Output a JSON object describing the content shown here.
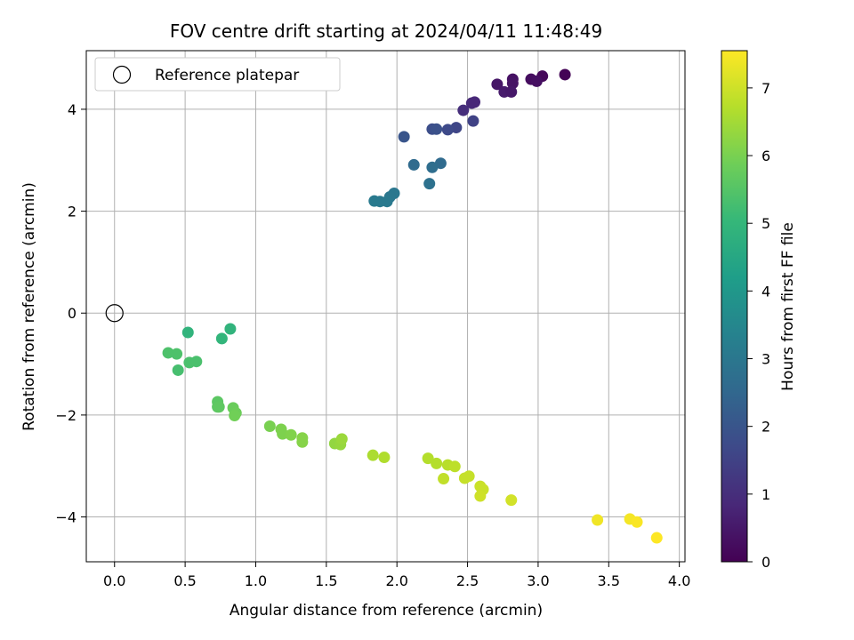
{
  "chart_data": {
    "type": "scatter",
    "title": "FOV centre drift starting at 2024/04/11 11:48:49",
    "xlabel": "Angular distance from reference (arcmin)",
    "ylabel": "Rotation from reference (arcmin)",
    "xlim": [
      -0.2,
      4.04
    ],
    "ylim": [
      -4.88,
      5.15
    ],
    "xticks": [
      0.0,
      0.5,
      1.0,
      1.5,
      2.0,
      2.5,
      3.0,
      3.5,
      4.0
    ],
    "xtick_labels": [
      "0.0",
      "0.5",
      "1.0",
      "1.5",
      "2.0",
      "2.5",
      "3.0",
      "3.5",
      "4.0"
    ],
    "yticks": [
      -4,
      -2,
      0,
      2,
      4
    ],
    "ytick_labels": [
      "−4",
      "−2",
      "0",
      "2",
      "4"
    ],
    "grid": true,
    "legend": {
      "placement": "top-left",
      "entries": [
        "Reference platepar"
      ]
    },
    "reference_point": {
      "name": "Reference platepar",
      "x": 0.0,
      "y": 0.0
    },
    "colorbar": {
      "label": "Hours from first FF file",
      "colormap": "viridis",
      "range": [
        0,
        7.55
      ],
      "ticks": [
        0,
        1,
        2,
        3,
        4,
        5,
        6,
        7
      ],
      "tick_labels": [
        "0",
        "1",
        "2",
        "3",
        "4",
        "5",
        "6",
        "7"
      ]
    },
    "points": [
      {
        "x": 3.19,
        "y": 4.68,
        "hours": 0.05
      },
      {
        "x": 3.03,
        "y": 4.65,
        "hours": 0.15
      },
      {
        "x": 2.95,
        "y": 4.59,
        "hours": 0.25
      },
      {
        "x": 2.99,
        "y": 4.55,
        "hours": 0.3
      },
      {
        "x": 2.82,
        "y": 4.59,
        "hours": 0.35
      },
      {
        "x": 2.82,
        "y": 4.51,
        "hours": 0.4
      },
      {
        "x": 2.71,
        "y": 4.49,
        "hours": 0.45
      },
      {
        "x": 2.76,
        "y": 4.34,
        "hours": 0.55
      },
      {
        "x": 2.81,
        "y": 4.34,
        "hours": 0.5
      },
      {
        "x": 2.53,
        "y": 4.12,
        "hours": 0.9
      },
      {
        "x": 2.55,
        "y": 4.14,
        "hours": 0.85
      },
      {
        "x": 2.47,
        "y": 3.98,
        "hours": 1.0
      },
      {
        "x": 2.54,
        "y": 3.77,
        "hours": 1.5
      },
      {
        "x": 2.42,
        "y": 3.64,
        "hours": 1.6
      },
      {
        "x": 2.36,
        "y": 3.6,
        "hours": 1.7
      },
      {
        "x": 2.25,
        "y": 3.61,
        "hours": 1.8
      },
      {
        "x": 2.28,
        "y": 3.61,
        "hours": 1.9
      },
      {
        "x": 2.05,
        "y": 3.46,
        "hours": 2.0
      },
      {
        "x": 2.31,
        "y": 2.94,
        "hours": 2.6
      },
      {
        "x": 2.12,
        "y": 2.91,
        "hours": 2.6
      },
      {
        "x": 2.25,
        "y": 2.86,
        "hours": 2.7
      },
      {
        "x": 2.23,
        "y": 2.54,
        "hours": 2.8
      },
      {
        "x": 1.98,
        "y": 2.35,
        "hours": 3.0
      },
      {
        "x": 1.95,
        "y": 2.28,
        "hours": 3.0
      },
      {
        "x": 1.93,
        "y": 2.19,
        "hours": 3.05
      },
      {
        "x": 1.88,
        "y": 2.19,
        "hours": 3.05
      },
      {
        "x": 1.84,
        "y": 2.2,
        "hours": 3.1
      },
      {
        "x": 0.52,
        "y": -0.38,
        "hours": 4.9
      },
      {
        "x": 0.82,
        "y": -0.31,
        "hours": 4.9
      },
      {
        "x": 0.76,
        "y": -0.5,
        "hours": 4.95
      },
      {
        "x": 0.38,
        "y": -0.78,
        "hours": 5.4
      },
      {
        "x": 0.44,
        "y": -0.8,
        "hours": 5.4
      },
      {
        "x": 0.53,
        "y": -0.97,
        "hours": 5.35
      },
      {
        "x": 0.58,
        "y": -0.95,
        "hours": 5.35
      },
      {
        "x": 0.45,
        "y": -1.12,
        "hours": 5.3
      },
      {
        "x": 0.73,
        "y": -1.74,
        "hours": 5.6
      },
      {
        "x": 0.73,
        "y": -1.84,
        "hours": 5.6
      },
      {
        "x": 0.74,
        "y": -1.84,
        "hours": 5.65
      },
      {
        "x": 0.84,
        "y": -1.86,
        "hours": 5.8
      },
      {
        "x": 0.86,
        "y": -1.96,
        "hours": 5.85
      },
      {
        "x": 0.85,
        "y": -2.01,
        "hours": 5.9
      },
      {
        "x": 1.1,
        "y": -2.22,
        "hours": 6.0
      },
      {
        "x": 1.18,
        "y": -2.28,
        "hours": 6.05
      },
      {
        "x": 1.19,
        "y": -2.37,
        "hours": 6.05
      },
      {
        "x": 1.25,
        "y": -2.39,
        "hours": 6.1
      },
      {
        "x": 1.33,
        "y": -2.45,
        "hours": 6.15
      },
      {
        "x": 1.33,
        "y": -2.53,
        "hours": 6.15
      },
      {
        "x": 1.56,
        "y": -2.56,
        "hours": 6.3
      },
      {
        "x": 1.6,
        "y": -2.58,
        "hours": 6.35
      },
      {
        "x": 1.61,
        "y": -2.47,
        "hours": 6.4
      },
      {
        "x": 1.83,
        "y": -2.79,
        "hours": 6.6
      },
      {
        "x": 1.91,
        "y": -2.83,
        "hours": 6.65
      },
      {
        "x": 2.22,
        "y": -2.85,
        "hours": 6.7
      },
      {
        "x": 2.28,
        "y": -2.95,
        "hours": 6.7
      },
      {
        "x": 2.36,
        "y": -2.98,
        "hours": 6.75
      },
      {
        "x": 2.41,
        "y": -3.01,
        "hours": 6.8
      },
      {
        "x": 2.33,
        "y": -3.25,
        "hours": 6.85
      },
      {
        "x": 2.48,
        "y": -3.24,
        "hours": 6.9
      },
      {
        "x": 2.51,
        "y": -3.2,
        "hours": 6.9
      },
      {
        "x": 2.59,
        "y": -3.4,
        "hours": 6.95
      },
      {
        "x": 2.61,
        "y": -3.46,
        "hours": 6.95
      },
      {
        "x": 2.59,
        "y": -3.59,
        "hours": 7.0
      },
      {
        "x": 2.81,
        "y": -3.67,
        "hours": 7.05
      },
      {
        "x": 3.42,
        "y": -4.06,
        "hours": 7.4
      },
      {
        "x": 3.65,
        "y": -4.04,
        "hours": 7.45
      },
      {
        "x": 3.7,
        "y": -4.1,
        "hours": 7.5
      },
      {
        "x": 3.84,
        "y": -4.41,
        "hours": 7.55
      }
    ]
  }
}
